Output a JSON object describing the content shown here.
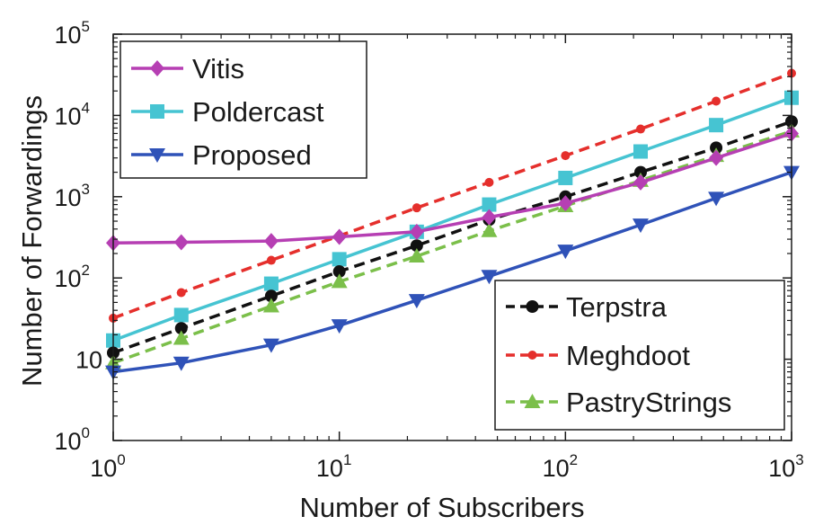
{
  "chart_data": {
    "type": "line",
    "x_scale": "log",
    "y_scale": "log",
    "xlabel": "Number of Subscribers",
    "ylabel": "Number of Forwardings",
    "xlim": [
      1,
      1000
    ],
    "ylim": [
      1,
      100000
    ],
    "x_ticks": [
      {
        "value": 1,
        "base": "10",
        "exp": "0"
      },
      {
        "value": 10,
        "base": "10",
        "exp": "1"
      },
      {
        "value": 100,
        "base": "10",
        "exp": "2"
      },
      {
        "value": 1000,
        "base": "10",
        "exp": "3"
      }
    ],
    "y_ticks": [
      {
        "value": 1,
        "base": "10",
        "exp": "0"
      },
      {
        "value": 10,
        "base": "10",
        "exp": ""
      },
      {
        "value": 100,
        "base": "10",
        "exp": "2"
      },
      {
        "value": 1000,
        "base": "10",
        "exp": "3"
      },
      {
        "value": 10000,
        "base": "10",
        "exp": "4"
      },
      {
        "value": 100000,
        "base": "10",
        "exp": "5"
      }
    ],
    "x": [
      1,
      2,
      5,
      10,
      22,
      46,
      100,
      215,
      464,
      1000
    ],
    "series": [
      {
        "name": "Vitis",
        "color": "#b63fb3",
        "dash": "solid",
        "marker": "diamond",
        "values": [
          270,
          275,
          285,
          320,
          370,
          560,
          830,
          1500,
          3000,
          6000
        ]
      },
      {
        "name": "Poldercast",
        "color": "#46c4d2",
        "dash": "solid",
        "marker": "square",
        "values": [
          17,
          35,
          85,
          170,
          370,
          800,
          1700,
          3600,
          7600,
          16500
        ]
      },
      {
        "name": "Proposed",
        "color": "#2f52b8",
        "dash": "solid",
        "marker": "triangle-down",
        "values": [
          7,
          9,
          15,
          26,
          53,
          105,
          215,
          450,
          960,
          2000
        ]
      },
      {
        "name": "Terpstra",
        "color": "#111111",
        "dash": "dashed",
        "marker": "circle",
        "values": [
          12,
          24,
          60,
          120,
          250,
          520,
          1000,
          2000,
          4000,
          8400
        ]
      },
      {
        "name": "Meghdoot",
        "color": "#e52f2c",
        "dash": "dashed",
        "marker": "circle-small",
        "values": [
          32,
          66,
          165,
          330,
          730,
          1500,
          3200,
          6800,
          15000,
          33000
        ]
      },
      {
        "name": "PastryStrings",
        "color": "#7bbf4a",
        "dash": "dashed",
        "marker": "triangle-up",
        "values": [
          9,
          18,
          45,
          90,
          185,
          380,
          770,
          1580,
          3200,
          6400
        ]
      }
    ],
    "legends": [
      {
        "position": "top-left",
        "series": [
          "Vitis",
          "Poldercast",
          "Proposed"
        ]
      },
      {
        "position": "bottom-right",
        "series": [
          "Terpstra",
          "Meghdoot",
          "PastryStrings"
        ]
      }
    ],
    "grid": false
  }
}
